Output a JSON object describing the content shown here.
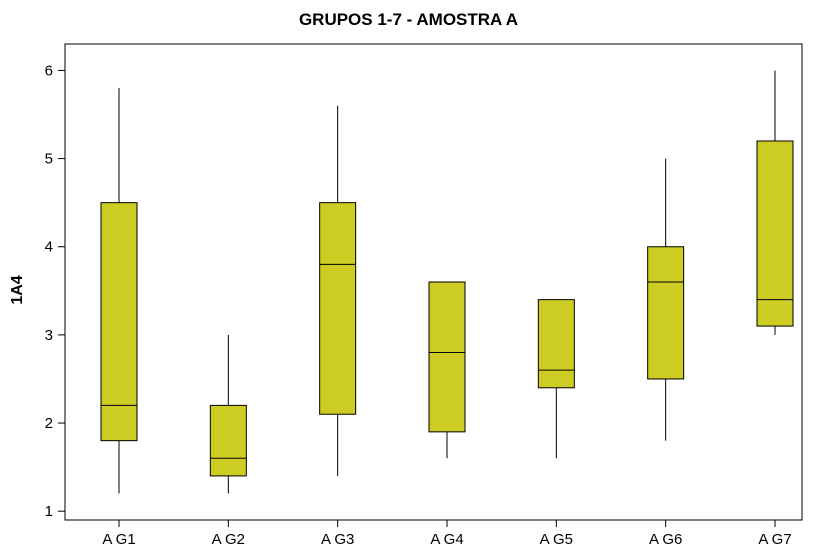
{
  "chart_data": {
    "type": "boxplot",
    "title": "GRUPOS 1-7 - AMOSTRA A",
    "xlabel": "",
    "ylabel": "1A4",
    "ylim": [
      0.9,
      6.3
    ],
    "yticks": [
      1,
      2,
      3,
      4,
      5,
      6
    ],
    "categories": [
      "A G1",
      "A G2",
      "A G3",
      "A G4",
      "A G5",
      "A G6",
      "A G7"
    ],
    "boxes": [
      {
        "min": 1.2,
        "q1": 1.8,
        "median": 2.2,
        "q3": 4.5,
        "max": 5.8
      },
      {
        "min": 1.2,
        "q1": 1.4,
        "median": 1.6,
        "q3": 2.2,
        "max": 3.0
      },
      {
        "min": 1.4,
        "q1": 2.1,
        "median": 3.8,
        "q3": 4.5,
        "max": 5.6
      },
      {
        "min": 1.6,
        "q1": 1.9,
        "median": 2.8,
        "q3": 3.6,
        "max": 3.6
      },
      {
        "min": 1.6,
        "q1": 2.4,
        "median": 2.6,
        "q3": 3.4,
        "max": 3.4
      },
      {
        "min": 1.8,
        "q1": 2.5,
        "median": 3.6,
        "q3": 4.0,
        "max": 5.0
      },
      {
        "min": 3.0,
        "q1": 3.1,
        "median": 3.4,
        "q3": 5.2,
        "max": 6.0
      }
    ],
    "box_color": "#cccc22",
    "grid": false,
    "legend": "none"
  }
}
